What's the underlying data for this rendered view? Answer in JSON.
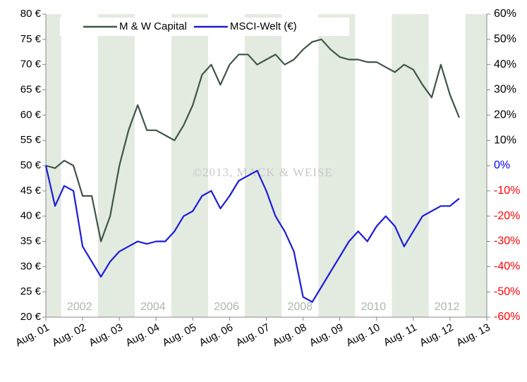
{
  "chart_data": {
    "type": "line",
    "watermark": "©2013, MACK & WEISE",
    "year_labels": [
      "2002",
      "2004",
      "2006",
      "2008",
      "2010",
      "2012"
    ],
    "band_color": "#e3ebe1",
    "x": [
      "2001-08",
      "2001-11",
      "2002-02",
      "2002-05",
      "2002-08",
      "2002-11",
      "2003-02",
      "2003-05",
      "2003-08",
      "2003-11",
      "2004-02",
      "2004-05",
      "2004-08",
      "2004-11",
      "2005-02",
      "2005-05",
      "2005-08",
      "2005-11",
      "2006-02",
      "2006-05",
      "2006-08",
      "2006-11",
      "2007-02",
      "2007-05",
      "2007-08",
      "2007-11",
      "2008-02",
      "2008-05",
      "2008-08",
      "2008-11",
      "2009-02",
      "2009-05",
      "2009-08",
      "2009-11",
      "2010-02",
      "2010-05",
      "2010-08",
      "2010-11",
      "2011-02",
      "2011-05",
      "2011-08",
      "2011-11",
      "2012-02",
      "2012-05",
      "2012-08",
      "2012-11"
    ],
    "series": [
      {
        "name": "M & W Capital",
        "color": "#3e5646",
        "axis": "y",
        "values": [
          50,
          49.5,
          51,
          50,
          44,
          44,
          35,
          40,
          50,
          57,
          62,
          57,
          57,
          56,
          55,
          58,
          62,
          68,
          70,
          66,
          70,
          72,
          72,
          70,
          71,
          72,
          70,
          71,
          73,
          74.5,
          75,
          73,
          71.5,
          71,
          71,
          70.5,
          70.5,
          69.5,
          68.5,
          70,
          69,
          66,
          63.5,
          70,
          64,
          59.5
        ]
      },
      {
        "name": "MSCI-Welt (€)",
        "color": "#1c1cd8",
        "axis": "y2",
        "values": [
          0,
          -16,
          -8,
          -10,
          -32,
          -38,
          -44,
          -38,
          -34,
          -32,
          -30,
          -31,
          -30,
          -30,
          -26,
          -20,
          -18,
          -12,
          -10,
          -17,
          -12,
          -6,
          -4,
          -2,
          -10,
          -20,
          -26,
          -34,
          -52,
          -54,
          -48,
          -42,
          -36,
          -30,
          -26,
          -30,
          -24,
          -20,
          -24,
          -32,
          -26,
          -20,
          -18,
          -16,
          -16,
          -13
        ]
      }
    ],
    "xlim": [
      "2001-08",
      "2013-08"
    ],
    "xticks": [
      {
        "value": "2001-08",
        "label": "Aug. 01"
      },
      {
        "value": "2002-08",
        "label": "Aug. 02"
      },
      {
        "value": "2003-08",
        "label": "Aug. 03"
      },
      {
        "value": "2004-08",
        "label": "Aug. 04"
      },
      {
        "value": "2005-08",
        "label": "Aug. 05"
      },
      {
        "value": "2006-08",
        "label": "Aug. 06"
      },
      {
        "value": "2007-08",
        "label": "Aug. 07"
      },
      {
        "value": "2008-08",
        "label": "Aug. 08"
      },
      {
        "value": "2009-08",
        "label": "Aug. 09"
      },
      {
        "value": "2010-08",
        "label": "Aug. 10"
      },
      {
        "value": "2011-08",
        "label": "Aug. 11"
      },
      {
        "value": "2012-08",
        "label": "Aug. 12"
      },
      {
        "value": "2013-08",
        "label": "Aug. 13"
      }
    ],
    "ylim": [
      20,
      80
    ],
    "yticks": [
      {
        "value": 20,
        "label": "20 €"
      },
      {
        "value": 25,
        "label": "25 €"
      },
      {
        "value": 30,
        "label": "30 €"
      },
      {
        "value": 35,
        "label": "35 €"
      },
      {
        "value": 40,
        "label": "40 €"
      },
      {
        "value": 45,
        "label": "45 €"
      },
      {
        "value": 50,
        "label": "50 €"
      },
      {
        "value": 55,
        "label": "55 €"
      },
      {
        "value": 60,
        "label": "60 €"
      },
      {
        "value": 65,
        "label": "65 €"
      },
      {
        "value": 70,
        "label": "70 €"
      },
      {
        "value": 75,
        "label": "75 €"
      },
      {
        "value": 80,
        "label": "80 €"
      }
    ],
    "y2lim": [
      -60,
      60
    ],
    "y2ticks": [
      {
        "value": -60,
        "label": "-60%"
      },
      {
        "value": -50,
        "label": "-50%"
      },
      {
        "value": -40,
        "label": "-40%"
      },
      {
        "value": -30,
        "label": "-30%"
      },
      {
        "value": -20,
        "label": "-20%"
      },
      {
        "value": -10,
        "label": "-10%"
      },
      {
        "value": 0,
        "label": "0%"
      },
      {
        "value": 10,
        "label": "10%"
      },
      {
        "value": 20,
        "label": "20%"
      },
      {
        "value": 30,
        "label": "30%"
      },
      {
        "value": 40,
        "label": "40%"
      },
      {
        "value": 50,
        "label": "50%"
      },
      {
        "value": 60,
        "label": "60%"
      }
    ],
    "y2tick_colors": {
      "positive": "#000000",
      "zero": "#0000ff",
      "negative": "#ff0000"
    }
  }
}
